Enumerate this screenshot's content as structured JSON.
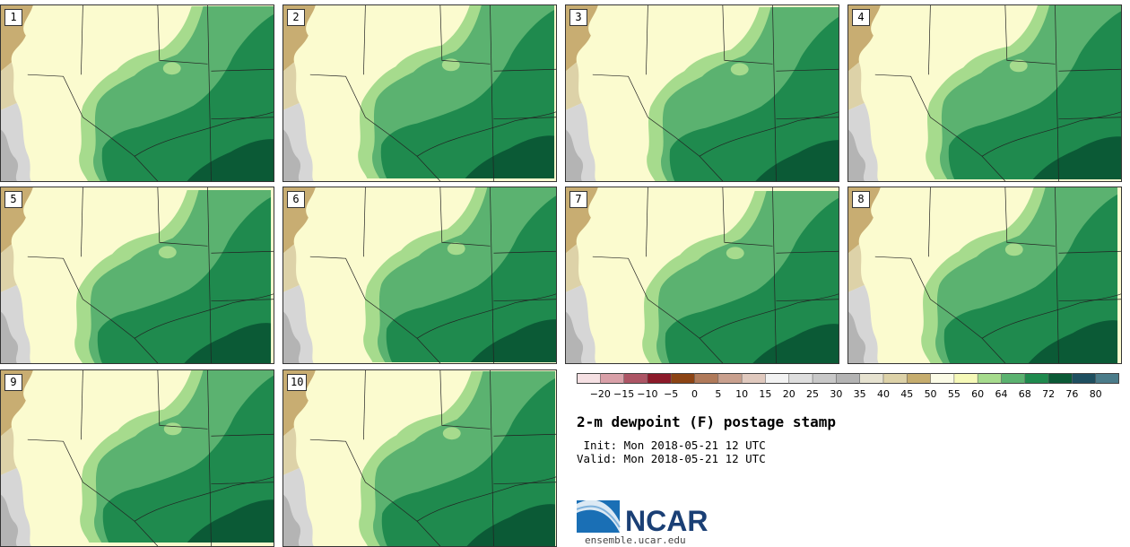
{
  "panels": [
    {
      "label": "1"
    },
    {
      "label": "2"
    },
    {
      "label": "3"
    },
    {
      "label": "4"
    },
    {
      "label": "5"
    },
    {
      "label": "6"
    },
    {
      "label": "7"
    },
    {
      "label": "8"
    },
    {
      "label": "9"
    },
    {
      "label": "10"
    }
  ],
  "colorbar": {
    "tick_labels": [
      "−20",
      "−15",
      "−10",
      "−5",
      "0",
      "5",
      "10",
      "15",
      "20",
      "25",
      "30",
      "35",
      "40",
      "45",
      "50",
      "55",
      "60",
      "64",
      "68",
      "72",
      "76",
      "80"
    ],
    "colors": [
      "#f5e0e3",
      "#d9a0a8",
      "#ad5565",
      "#8c1a2a",
      "#8c4414",
      "#b07a5a",
      "#c9a08e",
      "#e0c9be",
      "#f2f2f2",
      "#dedede",
      "#c8c8c8",
      "#b4b4b4",
      "#e6e2d0",
      "#ddd2a8",
      "#c6ad6e",
      "#fbfbe6",
      "#f6f9b8",
      "#a6db8d",
      "#5bb270",
      "#1f8a4e",
      "#0b5a36",
      "#1e4f60",
      "#4b7c8a"
    ]
  },
  "title": "2-m dewpoint (F) postage stamp",
  "init_text": " Init: Mon 2018-05-21 12 UTC",
  "valid_text": "Valid: Mon 2018-05-21 12 UTC",
  "logo": {
    "text": "NCAR",
    "url": "ensemble.ucar.edu"
  }
}
